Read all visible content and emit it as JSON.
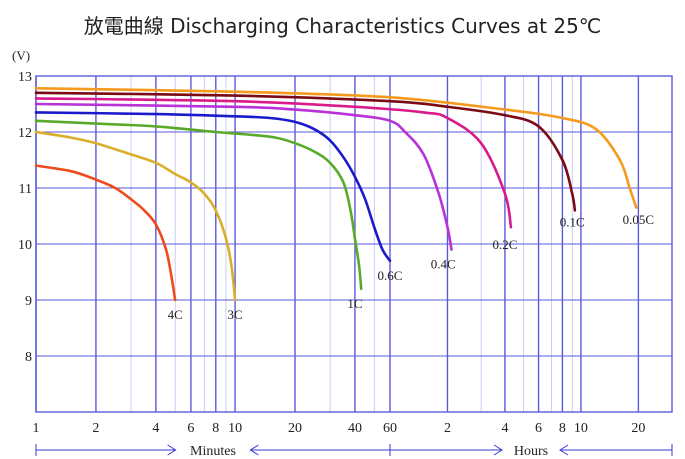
{
  "chart_data": {
    "type": "line",
    "title": "放電曲線 Discharging Characteristics Curves at 25℃",
    "ylabel": "(V)",
    "ylim": [
      7,
      13
    ],
    "yticks": [
      8,
      9,
      10,
      11,
      12,
      13
    ],
    "x_scale": "log",
    "x_segments": [
      {
        "name": "Minutes",
        "unit": "min",
        "range": [
          1,
          60
        ],
        "ticks": [
          "1",
          "2",
          "4",
          "6",
          "8",
          "10",
          "20",
          "40",
          "60"
        ]
      },
      {
        "name": "Hours",
        "unit": "h",
        "range": [
          1,
          30
        ],
        "ticks": [
          "2",
          "4",
          "6",
          "8",
          "10",
          "20"
        ]
      }
    ],
    "series": [
      {
        "name": "4C",
        "color": "#f04a1c",
        "points": [
          [
            1,
            11.4
          ],
          [
            1.5,
            11.3
          ],
          [
            2,
            11.15
          ],
          [
            2.5,
            11.0
          ],
          [
            3,
            10.8
          ],
          [
            3.5,
            10.6
          ],
          [
            4,
            10.35
          ],
          [
            4.5,
            9.9
          ],
          [
            4.8,
            9.4
          ],
          [
            5,
            9.0
          ]
        ]
      },
      {
        "name": "3C",
        "color": "#d9ae2a",
        "points": [
          [
            1,
            12.0
          ],
          [
            1.5,
            11.9
          ],
          [
            2,
            11.8
          ],
          [
            3,
            11.6
          ],
          [
            4,
            11.45
          ],
          [
            5,
            11.25
          ],
          [
            6,
            11.1
          ],
          [
            7,
            10.9
          ],
          [
            8,
            10.6
          ],
          [
            9,
            10.1
          ],
          [
            9.6,
            9.6
          ],
          [
            10,
            9.0
          ]
        ]
      },
      {
        "name": "1C",
        "color": "#5aaa2a",
        "points": [
          [
            1,
            12.2
          ],
          [
            2,
            12.15
          ],
          [
            4,
            12.1
          ],
          [
            8,
            12.0
          ],
          [
            12,
            11.95
          ],
          [
            16,
            11.9
          ],
          [
            20,
            11.8
          ],
          [
            25,
            11.65
          ],
          [
            30,
            11.45
          ],
          [
            35,
            11.1
          ],
          [
            38,
            10.6
          ],
          [
            40,
            10.1
          ],
          [
            42,
            9.6
          ],
          [
            43,
            9.2
          ]
        ]
      },
      {
        "name": "0.6C",
        "color": "#1a1acc",
        "points": [
          [
            1,
            12.35
          ],
          [
            4,
            12.32
          ],
          [
            10,
            12.28
          ],
          [
            15,
            12.25
          ],
          [
            20,
            12.18
          ],
          [
            25,
            12.05
          ],
          [
            30,
            11.85
          ],
          [
            35,
            11.55
          ],
          [
            40,
            11.2
          ],
          [
            45,
            10.8
          ],
          [
            50,
            10.3
          ],
          [
            55,
            9.9
          ],
          [
            60,
            9.7
          ]
        ]
      },
      {
        "name": "0.4C",
        "color": "#b832d8",
        "points": [
          [
            1,
            12.5
          ],
          [
            10,
            12.45
          ],
          [
            20,
            12.4
          ],
          [
            40,
            12.3
          ],
          [
            60,
            12.2
          ],
          [
            "h1.2",
            12.0
          ],
          [
            "h1.5",
            11.6
          ],
          [
            "h1.8",
            10.9
          ],
          [
            "h2.0",
            10.3
          ],
          [
            "h2.1",
            9.9
          ]
        ]
      },
      {
        "name": "0.2C",
        "color": "#d81a8a",
        "points": [
          [
            1,
            12.6
          ],
          [
            10,
            12.55
          ],
          [
            40,
            12.45
          ],
          [
            "h1.5",
            12.35
          ],
          [
            "h2",
            12.25
          ],
          [
            "h3",
            11.8
          ],
          [
            "h4",
            10.9
          ],
          [
            "h4.3",
            10.3
          ]
        ]
      },
      {
        "name": "0.1C",
        "color": "#7a0a14",
        "points": [
          [
            1,
            12.7
          ],
          [
            10,
            12.65
          ],
          [
            60,
            12.55
          ],
          [
            "h2",
            12.45
          ],
          [
            "h4",
            12.3
          ],
          [
            "h6",
            12.1
          ],
          [
            "h8",
            11.5
          ],
          [
            "h9",
            10.9
          ],
          [
            "h9.3",
            10.6
          ]
        ]
      },
      {
        "name": "0.05C",
        "color": "#f59a1c",
        "points": [
          [
            1,
            12.78
          ],
          [
            10,
            12.72
          ],
          [
            60,
            12.62
          ],
          [
            "h4",
            12.4
          ],
          [
            "h8",
            12.25
          ],
          [
            "h12",
            12.05
          ],
          [
            "h16",
            11.5
          ],
          [
            "h18",
            11.0
          ],
          [
            "h19.5",
            10.65
          ]
        ]
      }
    ],
    "label_positions": {
      "4C": [
        5,
        8.75
      ],
      "3C": [
        10,
        8.75
      ],
      "1C": [
        40,
        8.95
      ],
      "0.6C": [
        "h1",
        9.45
      ],
      "0.4C": [
        "h1.9",
        9.65
      ],
      "0.2C": [
        "h4",
        10.0
      ],
      "0.1C": [
        "h9",
        10.4
      ],
      "0.05C": [
        "h20",
        10.45
      ]
    },
    "grid": true
  }
}
